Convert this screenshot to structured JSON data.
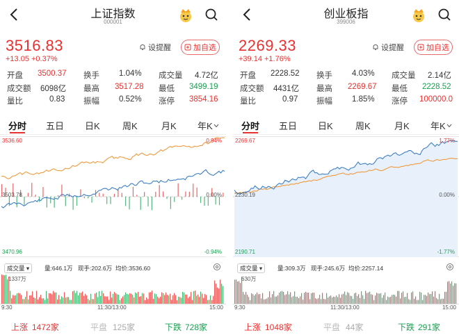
{
  "panels": [
    {
      "title": "上证指数",
      "code": "000001",
      "price": "3516.83",
      "change": "+13.05  +0.37%",
      "remind_label": "设提醒",
      "add_label": "加自选",
      "stats": {
        "open_label": "开盘",
        "open": "3500.37",
        "turnover_label": "换手",
        "turnover": "1.04%",
        "volume_label": "成交量",
        "volume": "4.72亿",
        "amount_label": "成交额",
        "amount": "6098亿",
        "high_label": "最高",
        "high": "3517.28",
        "low_label": "最低",
        "low": "3499.19",
        "ratio_label": "量比",
        "ratio": "0.83",
        "amplitude_label": "振幅",
        "amplitude": "0.52%",
        "limit_label": "涨停",
        "limit": "3854.16"
      },
      "tabs": [
        "分时",
        "五日",
        "日K",
        "周K",
        "月K",
        "年K"
      ],
      "chart": {
        "top_price": "3536.60",
        "mid_price": "3503.78",
        "bottom_price": "3470.96",
        "top_pct": "0.94%",
        "mid_pct": "0.00%",
        "bottom_pct": "-0.94%"
      },
      "volume_bar": {
        "label": "成交量",
        "total": "量:646.1万",
        "now": "现手:202.6万",
        "avg": "均价:3536.60",
        "max": "1337万"
      },
      "time_labels": [
        "9:30",
        "11:30/13:00",
        "15:00"
      ],
      "breadth": {
        "up_label": "上涨",
        "up": "1472家",
        "flat_label": "平盘",
        "flat": "125家",
        "down_label": "下跌",
        "down": "728家"
      },
      "chart_data": {
        "type": "line",
        "x": [
          "9:30",
          "11:30/13:00",
          "15:00"
        ],
        "ylim": [
          3470.96,
          3536.6
        ],
        "series": [],
        "grid": true
      }
    },
    {
      "title": "创业板指",
      "code": "399006",
      "price": "2269.33",
      "change": "+39.14  +1.76%",
      "remind_label": "设提醒",
      "add_label": "加自选",
      "stats": {
        "open_label": "开盘",
        "open": "2228.52",
        "turnover_label": "换手",
        "turnover": "4.03%",
        "volume_label": "成交量",
        "volume": "2.14亿",
        "amount_label": "成交额",
        "amount": "4431亿",
        "high_label": "最高",
        "high": "2269.67",
        "low_label": "最低",
        "low": "2228.52",
        "ratio_label": "量比",
        "ratio": "0.97",
        "amplitude_label": "振幅",
        "amplitude": "1.85%",
        "limit_label": "涨停",
        "limit": "100000.0"
      },
      "tabs": [
        "分时",
        "五日",
        "日K",
        "周K",
        "月K",
        "年K"
      ],
      "chart": {
        "top_price": "2269.67",
        "mid_price": "2230.19",
        "bottom_price": "2190.71",
        "top_pct": "1.77%",
        "mid_pct": "0.00%",
        "bottom_pct": "-1.77%"
      },
      "volume_bar": {
        "label": "成交量",
        "total": "量:309.3万",
        "now": "现手:245.6万",
        "avg": "均价:2257.14",
        "max": "630万"
      },
      "time_labels": [
        "9:30",
        "11:30/13:00",
        "15:00"
      ],
      "breadth": {
        "up_label": "上涨",
        "up": "1048家",
        "flat_label": "平盘",
        "flat": "44家",
        "down_label": "下跌",
        "down": "291家"
      },
      "chart_data": {
        "type": "line",
        "x": [
          "9:30",
          "11:30/13:00",
          "15:00"
        ],
        "ylim": [
          2190.71,
          2269.67
        ],
        "series": [],
        "grid": true
      }
    }
  ],
  "colors": {
    "up": "#e93030",
    "down": "#1aa051",
    "price_line": "#3d7fc4",
    "avg_line": "#f09a3e"
  }
}
